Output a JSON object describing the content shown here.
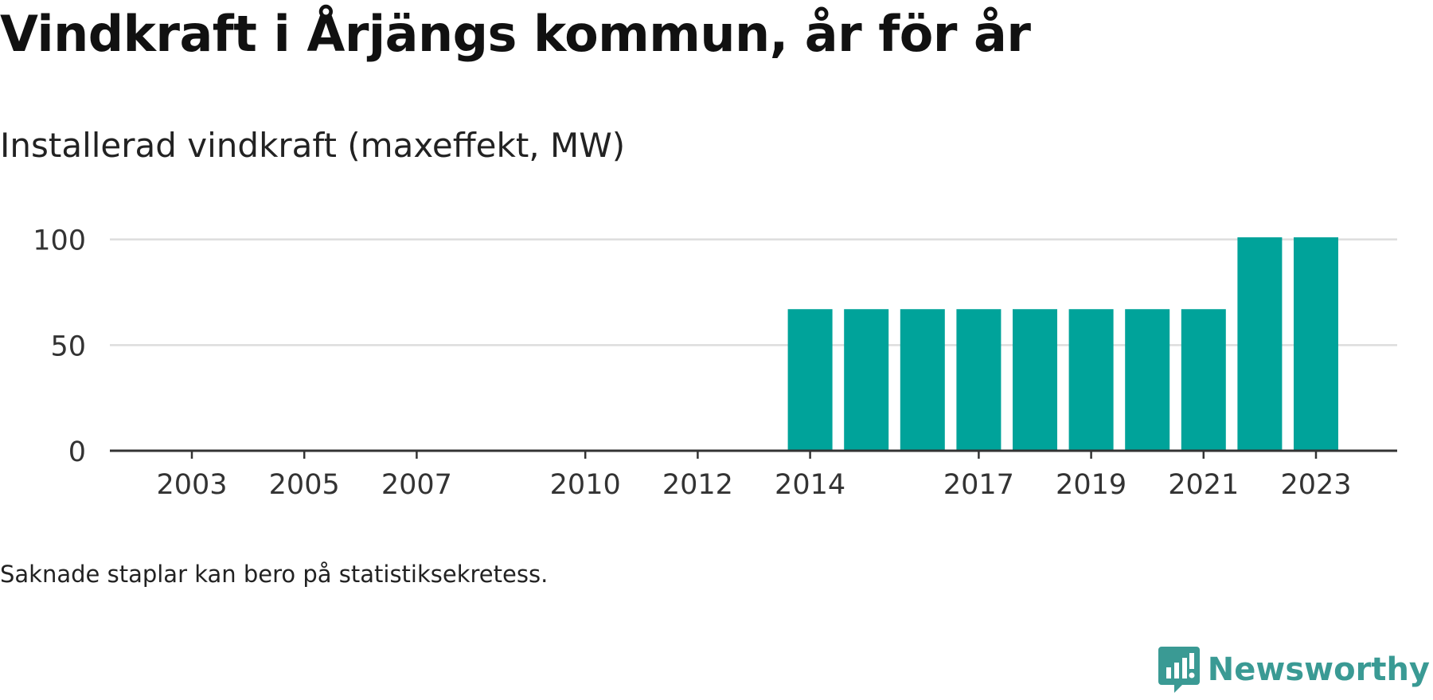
{
  "title": "Vindkraft i Årjängs kommun, år för år",
  "subtitle": "Installerad vindkraft (maxeffekt, MW)",
  "note": "Saknade staplar kan bero på statistiksekretess.",
  "brand": {
    "name": "Newsworthy",
    "icon": "newsworthy-logo-icon"
  },
  "colors": {
    "bar": "#00a39a",
    "brand": "#3a9a94",
    "grid": "#dddddd",
    "axis": "#333333",
    "text": "#333333"
  },
  "chart_data": {
    "type": "bar",
    "x": [
      2003,
      2004,
      2005,
      2006,
      2007,
      2008,
      2009,
      2010,
      2011,
      2012,
      2013,
      2014,
      2015,
      2016,
      2017,
      2018,
      2019,
      2020,
      2021,
      2022,
      2023
    ],
    "values": [
      0,
      0,
      0,
      0,
      0,
      null,
      null,
      0,
      0,
      0,
      null,
      67,
      67,
      67,
      67,
      67,
      67,
      67,
      67,
      101,
      101
    ],
    "xtick_labels": [
      "2003",
      "2005",
      "2007",
      "2010",
      "2012",
      "2014",
      "2017",
      "2019",
      "2021",
      "2023"
    ],
    "yticks": [
      0,
      50,
      100
    ],
    "ylim": [
      0,
      101
    ],
    "xlabel": "",
    "ylabel": "",
    "grid": true,
    "legend": "none"
  }
}
